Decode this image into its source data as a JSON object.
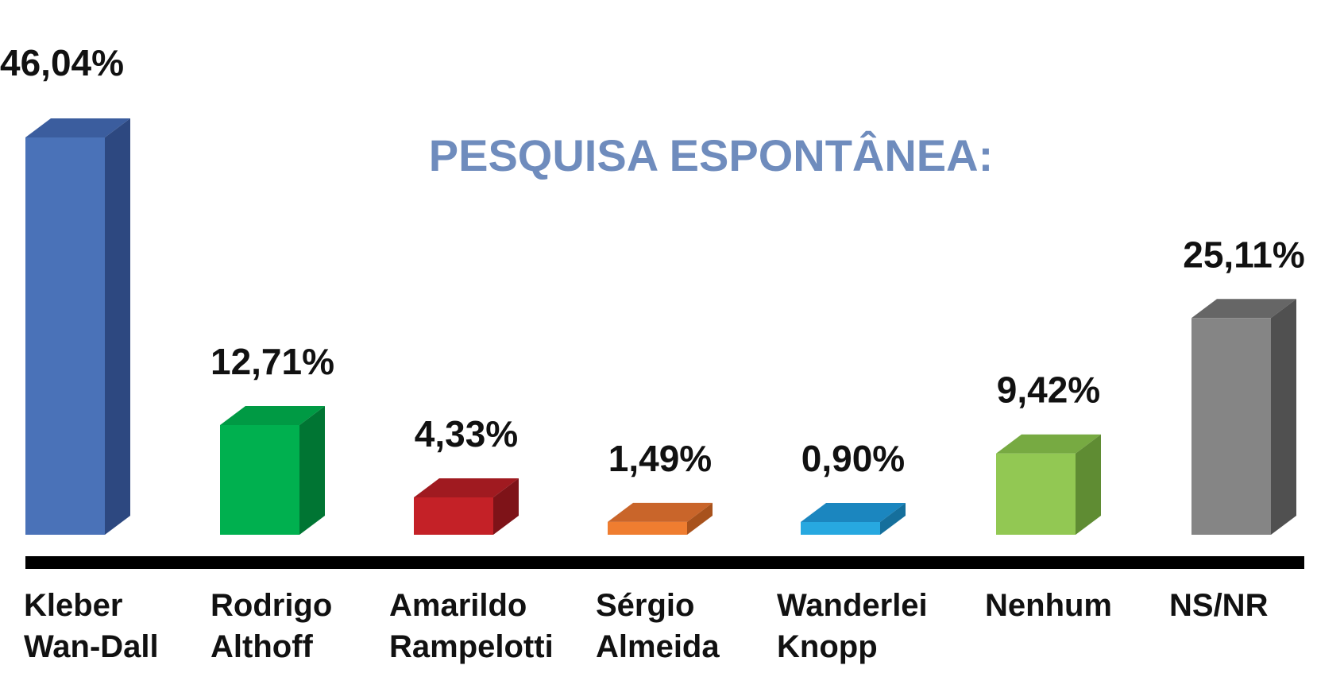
{
  "chart_data": {
    "type": "bar",
    "title": "PESQUISA ESPONTÂNEA:",
    "xlabel": "",
    "ylabel": "",
    "ylim": [
      0,
      50
    ],
    "grid": false,
    "legend": "none",
    "categories": [
      [
        "Kleber",
        "Wan-Dall"
      ],
      [
        "Rodrigo",
        "Althoff"
      ],
      [
        "Amarildo",
        "Rampelotti"
      ],
      [
        "Sérgio",
        "Almeida"
      ],
      [
        "Wanderlei",
        "Knopp"
      ],
      [
        "Nenhum"
      ],
      [
        "NS/NR"
      ]
    ],
    "values": [
      46.04,
      12.71,
      4.33,
      1.49,
      0.9,
      9.42,
      25.11
    ],
    "value_labels": [
      "46,04%",
      "12,71%",
      "4,33%",
      "1,49%",
      "0,90%",
      "9,42%",
      "25,11%"
    ],
    "colors": [
      {
        "front": "#4a72b8",
        "side": "#2d4880",
        "top": "#3b5d9e"
      },
      {
        "front": "#00b04f",
        "side": "#007533",
        "top": "#009a44"
      },
      {
        "front": "#c42127",
        "side": "#7e1318",
        "top": "#a01a20"
      },
      {
        "front": "#ef7d30",
        "side": "#a8521c",
        "top": "#c9652a"
      },
      {
        "front": "#27a8e0",
        "side": "#156f9c",
        "top": "#1b86bf"
      },
      {
        "front": "#92c853",
        "side": "#5f8c33",
        "top": "#77aa42"
      },
      {
        "front": "#858585",
        "side": "#505050",
        "top": "#666666"
      }
    ],
    "axis_color": "#000000"
  }
}
